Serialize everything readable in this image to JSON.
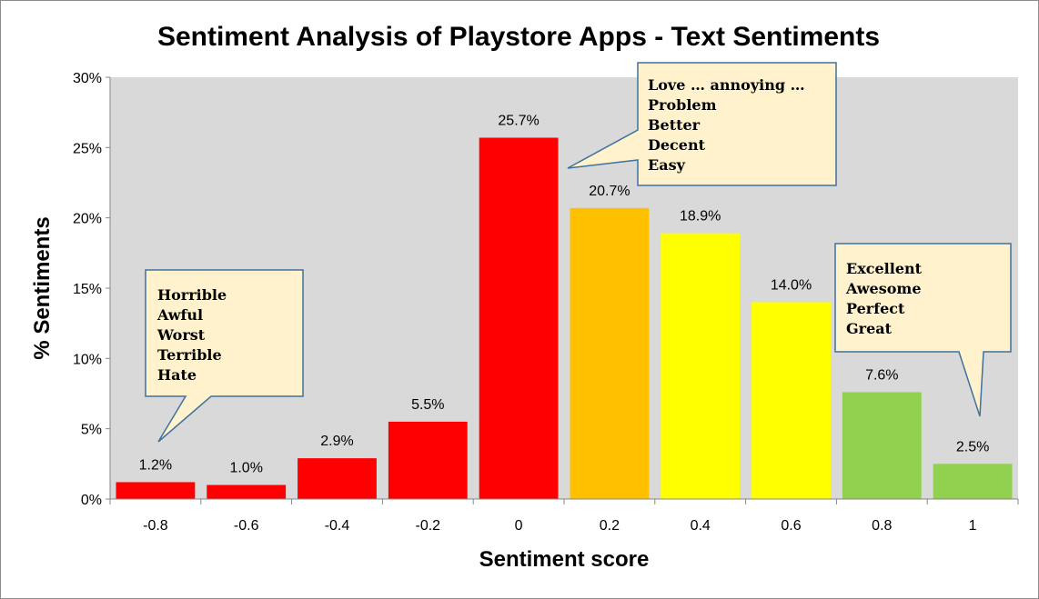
{
  "chart_data": {
    "type": "bar",
    "title": "Sentiment Analysis of Playstore Apps - Text Sentiments",
    "xlabel": "Sentiment score",
    "ylabel": "% Sentiments",
    "categories": [
      "-0.8",
      "-0.6",
      "-0.4",
      "-0.2",
      "0",
      "0.2",
      "0.4",
      "0.6",
      "0.8",
      "1"
    ],
    "values": [
      1.2,
      1.0,
      2.9,
      5.5,
      25.7,
      20.7,
      18.9,
      14.0,
      7.6,
      2.5
    ],
    "value_labels": [
      "1.2%",
      "1.0%",
      "2.9%",
      "5.5%",
      "25.7%",
      "20.7%",
      "18.9%",
      "14.0%",
      "7.6%",
      "2.5%"
    ],
    "bar_colors": [
      "#ff0000",
      "#ff0000",
      "#ff0000",
      "#ff0000",
      "#ff0000",
      "#ffc000",
      "#ffff00",
      "#ffff00",
      "#92d050",
      "#92d050"
    ],
    "ylim": [
      0,
      30
    ],
    "yticks": [
      0,
      5,
      10,
      15,
      20,
      25,
      30
    ],
    "ytick_labels": [
      "0%",
      "5%",
      "10%",
      "15%",
      "20%",
      "25%",
      "30%"
    ],
    "grid": false,
    "plot_background": "#d9d9d9",
    "annotations": [
      {
        "category": "-0.8",
        "lines": [
          "Horrible",
          "Awful",
          "Worst",
          "Terrible",
          "Hate"
        ]
      },
      {
        "category": "0",
        "lines": [
          "Love … annoying …",
          "Problem",
          "Better",
          "Decent",
          "Easy"
        ]
      },
      {
        "category": "1",
        "lines": [
          "Excellent",
          "Awesome",
          "Perfect",
          "Great"
        ]
      }
    ],
    "callout_fill": "#fff2cc",
    "callout_stroke": "#41719c"
  }
}
